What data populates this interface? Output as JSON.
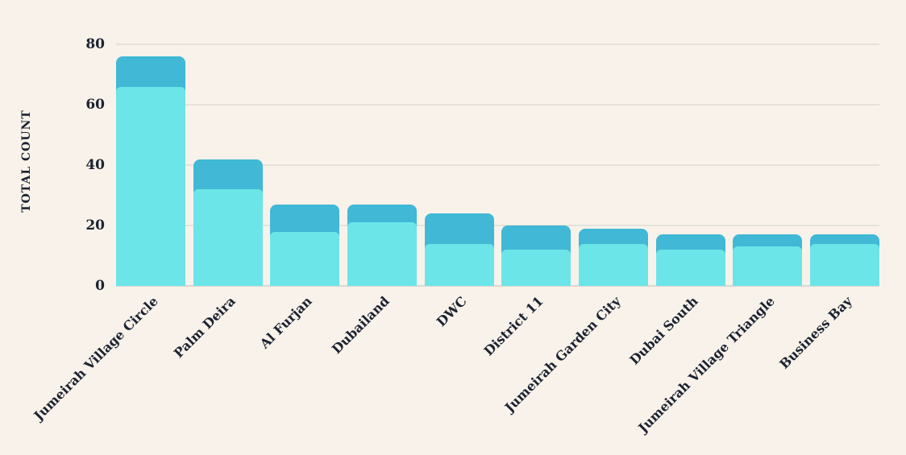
{
  "chart_data": {
    "type": "bar",
    "stacked": true,
    "title": "",
    "xlabel": "",
    "ylabel": "TOTAL COUNT",
    "categories": [
      "Jumeirah Village Circle",
      "Palm Deira",
      "Al Furjan",
      "Dubailand",
      "DWC",
      "District 11",
      "Jumeirah Garden City",
      "Dubai South",
      "Jumeirah Village Triangle",
      "Business Bay"
    ],
    "series": [
      {
        "name": "segment-bottom",
        "color": "#6ce5e8",
        "values": [
          66,
          32,
          18,
          21,
          14,
          12,
          14,
          12,
          13,
          14
        ]
      },
      {
        "name": "segment-top",
        "color": "#41b8d5",
        "values": [
          10,
          10,
          9,
          6,
          10,
          8,
          5,
          5,
          4,
          3
        ]
      }
    ],
    "totals": [
      76,
      42,
      27,
      27,
      24,
      20,
      19,
      17,
      17,
      17
    ],
    "yticks": [
      0,
      20,
      40,
      60,
      80
    ],
    "ylim": [
      0,
      80
    ],
    "grid": true,
    "legend": "none",
    "background": "#f8f2ea",
    "text_color": "#1c2230",
    "gridline_color": "#e5e2db",
    "axisline_color": "#dbd8d1"
  }
}
